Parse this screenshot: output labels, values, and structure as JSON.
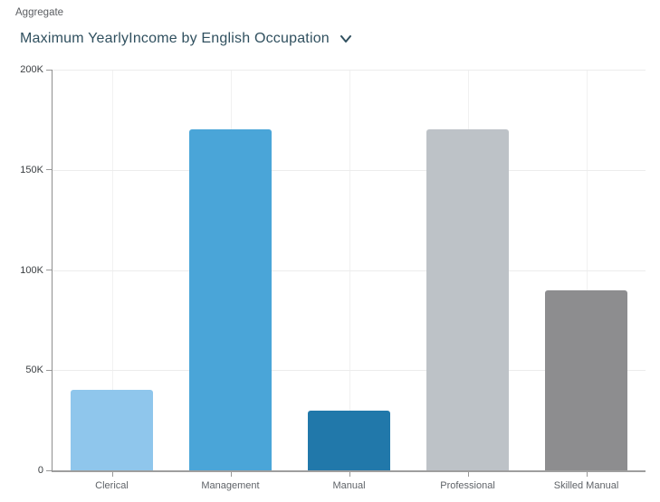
{
  "header": {
    "aggregate_label": "Aggregate",
    "title": "Maximum YearlyIncome by English Occupation"
  },
  "chart_data": {
    "type": "bar",
    "title": "Maximum YearlyIncome by English Occupation",
    "categories": [
      "Clerical",
      "Management",
      "Manual",
      "Professional",
      "Skilled Manual"
    ],
    "values": [
      40000,
      170000,
      30000,
      170000,
      90000
    ],
    "bar_colors": [
      "#8fc6ec",
      "#4aa5d8",
      "#2178aa",
      "#bdc2c7",
      "#8d8d8f"
    ],
    "xlabel": "",
    "ylabel": "",
    "ylim": [
      0,
      200000
    ],
    "ytick_values": [
      0,
      50000,
      100000,
      150000,
      200000
    ],
    "ytick_labels": [
      "0",
      "50K",
      "100K",
      "150K",
      "200K"
    ],
    "grid": "on",
    "legend": "none"
  },
  "colors": {
    "title_text": "#30505f",
    "aggregate_text": "#5b5e62",
    "axis_line": "#9e9e9e",
    "gridline": "#ececec",
    "ytick_text": "#3b3f42",
    "xtick_text": "#5f6368"
  }
}
